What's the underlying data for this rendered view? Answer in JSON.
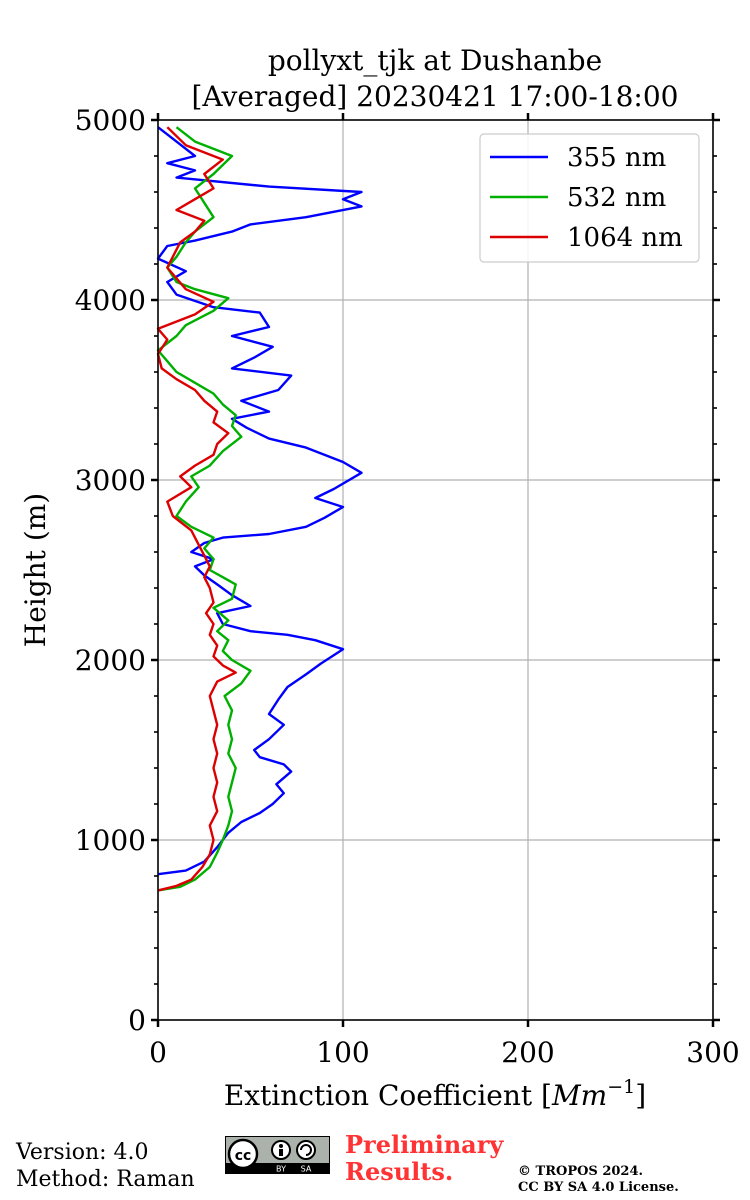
{
  "chart_data": {
    "type": "line",
    "title_line1": "pollyxt_tjk at Dushanbe",
    "title_line2": "[Averaged] 20230421 17:00-18:00",
    "xlabel_text": "Extinction Coefficient [",
    "xlabel_unit": "Mm",
    "xlabel_exp": "−1",
    "xlabel_close": "]",
    "ylabel": "Height (m)",
    "xlim": [
      0,
      300
    ],
    "ylim": [
      0,
      5000
    ],
    "xticks": [
      0,
      100,
      200,
      300
    ],
    "yticks": [
      0,
      1000,
      2000,
      3000,
      4000,
      5000
    ],
    "grid": true,
    "legend_position": "top-right",
    "series": [
      {
        "name": "355 nm",
        "color": "#0000ff",
        "points": [
          [
            0,
            810
          ],
          [
            15,
            830
          ],
          [
            25,
            880
          ],
          [
            32,
            960
          ],
          [
            38,
            1040
          ],
          [
            45,
            1100
          ],
          [
            55,
            1150
          ],
          [
            62,
            1200
          ],
          [
            68,
            1260
          ],
          [
            64,
            1310
          ],
          [
            72,
            1380
          ],
          [
            68,
            1420
          ],
          [
            55,
            1460
          ],
          [
            52,
            1500
          ],
          [
            60,
            1560
          ],
          [
            68,
            1640
          ],
          [
            60,
            1700
          ],
          [
            65,
            1780
          ],
          [
            70,
            1850
          ],
          [
            80,
            1920
          ],
          [
            88,
            1980
          ],
          [
            100,
            2060
          ],
          [
            85,
            2110
          ],
          [
            70,
            2140
          ],
          [
            50,
            2160
          ],
          [
            35,
            2200
          ],
          [
            32,
            2260
          ],
          [
            50,
            2300
          ],
          [
            40,
            2360
          ],
          [
            32,
            2420
          ],
          [
            25,
            2470
          ],
          [
            20,
            2520
          ],
          [
            30,
            2560
          ],
          [
            18,
            2600
          ],
          [
            25,
            2650
          ],
          [
            35,
            2680
          ],
          [
            60,
            2700
          ],
          [
            80,
            2740
          ],
          [
            90,
            2790
          ],
          [
            100,
            2850
          ],
          [
            85,
            2900
          ],
          [
            95,
            2950
          ],
          [
            110,
            3040
          ],
          [
            100,
            3100
          ],
          [
            80,
            3180
          ],
          [
            60,
            3230
          ],
          [
            48,
            3290
          ],
          [
            40,
            3340
          ],
          [
            60,
            3380
          ],
          [
            45,
            3440
          ],
          [
            65,
            3500
          ],
          [
            72,
            3580
          ],
          [
            40,
            3620
          ],
          [
            52,
            3680
          ],
          [
            62,
            3740
          ],
          [
            40,
            3800
          ],
          [
            60,
            3850
          ],
          [
            55,
            3930
          ],
          [
            30,
            3960
          ],
          [
            10,
            4030
          ],
          [
            5,
            4100
          ],
          [
            15,
            4160
          ],
          [
            0,
            4230
          ],
          [
            5,
            4300
          ],
          [
            20,
            4330
          ],
          [
            40,
            4380
          ],
          [
            50,
            4420
          ],
          [
            80,
            4460
          ],
          [
            110,
            4520
          ],
          [
            100,
            4560
          ],
          [
            110,
            4600
          ],
          [
            60,
            4630
          ],
          [
            10,
            4680
          ],
          [
            20,
            4720
          ],
          [
            5,
            4760
          ],
          [
            20,
            4800
          ],
          [
            10,
            4880
          ],
          [
            0,
            4960
          ]
        ]
      },
      {
        "name": "532 nm",
        "color": "#00b000",
        "points": [
          [
            0,
            720
          ],
          [
            12,
            740
          ],
          [
            20,
            780
          ],
          [
            28,
            850
          ],
          [
            32,
            930
          ],
          [
            35,
            1000
          ],
          [
            38,
            1080
          ],
          [
            40,
            1160
          ],
          [
            38,
            1240
          ],
          [
            40,
            1320
          ],
          [
            42,
            1400
          ],
          [
            38,
            1480
          ],
          [
            40,
            1560
          ],
          [
            38,
            1640
          ],
          [
            40,
            1720
          ],
          [
            36,
            1800
          ],
          [
            45,
            1870
          ],
          [
            50,
            1940
          ],
          [
            40,
            2000
          ],
          [
            35,
            2050
          ],
          [
            38,
            2110
          ],
          [
            32,
            2160
          ],
          [
            38,
            2220
          ],
          [
            30,
            2290
          ],
          [
            40,
            2340
          ],
          [
            42,
            2420
          ],
          [
            35,
            2460
          ],
          [
            28,
            2500
          ],
          [
            30,
            2560
          ],
          [
            25,
            2620
          ],
          [
            30,
            2680
          ],
          [
            18,
            2740
          ],
          [
            10,
            2800
          ],
          [
            15,
            2880
          ],
          [
            22,
            2960
          ],
          [
            18,
            3020
          ],
          [
            28,
            3080
          ],
          [
            35,
            3160
          ],
          [
            45,
            3240
          ],
          [
            40,
            3300
          ],
          [
            42,
            3360
          ],
          [
            35,
            3420
          ],
          [
            30,
            3480
          ],
          [
            20,
            3540
          ],
          [
            10,
            3600
          ],
          [
            5,
            3660
          ],
          [
            0,
            3720
          ],
          [
            10,
            3800
          ],
          [
            15,
            3860
          ],
          [
            30,
            3940
          ],
          [
            38,
            4010
          ],
          [
            20,
            4060
          ],
          [
            10,
            4100
          ],
          [
            5,
            4180
          ],
          [
            10,
            4240
          ],
          [
            15,
            4320
          ],
          [
            20,
            4380
          ],
          [
            30,
            4460
          ],
          [
            25,
            4540
          ],
          [
            20,
            4620
          ],
          [
            30,
            4700
          ],
          [
            40,
            4800
          ],
          [
            20,
            4880
          ],
          [
            10,
            4960
          ]
        ]
      },
      {
        "name": "1064 nm",
        "color": "#dd0000",
        "points": [
          [
            0,
            720
          ],
          [
            10,
            745
          ],
          [
            18,
            780
          ],
          [
            24,
            850
          ],
          [
            28,
            920
          ],
          [
            30,
            1000
          ],
          [
            28,
            1080
          ],
          [
            32,
            1160
          ],
          [
            30,
            1240
          ],
          [
            32,
            1320
          ],
          [
            30,
            1400
          ],
          [
            32,
            1480
          ],
          [
            30,
            1560
          ],
          [
            32,
            1640
          ],
          [
            30,
            1720
          ],
          [
            28,
            1800
          ],
          [
            32,
            1880
          ],
          [
            42,
            1930
          ],
          [
            35,
            1970
          ],
          [
            30,
            2020
          ],
          [
            32,
            2080
          ],
          [
            28,
            2140
          ],
          [
            30,
            2200
          ],
          [
            26,
            2260
          ],
          [
            30,
            2320
          ],
          [
            28,
            2400
          ],
          [
            25,
            2460
          ],
          [
            28,
            2520
          ],
          [
            25,
            2580
          ],
          [
            22,
            2640
          ],
          [
            18,
            2720
          ],
          [
            8,
            2800
          ],
          [
            5,
            2880
          ],
          [
            18,
            2960
          ],
          [
            12,
            3020
          ],
          [
            20,
            3080
          ],
          [
            30,
            3140
          ],
          [
            32,
            3200
          ],
          [
            38,
            3260
          ],
          [
            30,
            3320
          ],
          [
            32,
            3380
          ],
          [
            25,
            3440
          ],
          [
            20,
            3500
          ],
          [
            10,
            3560
          ],
          [
            2,
            3620
          ],
          [
            0,
            3700
          ],
          [
            5,
            3780
          ],
          [
            0,
            3840
          ],
          [
            20,
            3920
          ],
          [
            30,
            3990
          ],
          [
            15,
            4060
          ],
          [
            10,
            4120
          ],
          [
            5,
            4180
          ],
          [
            8,
            4240
          ],
          [
            12,
            4320
          ],
          [
            20,
            4380
          ],
          [
            25,
            4440
          ],
          [
            10,
            4500
          ],
          [
            20,
            4560
          ],
          [
            30,
            4620
          ],
          [
            25,
            4700
          ],
          [
            35,
            4780
          ],
          [
            15,
            4860
          ],
          [
            5,
            4960
          ]
        ]
      }
    ]
  },
  "footer": {
    "version": "Version: 4.0",
    "method": "Method: Raman",
    "prelim_line1": "Preliminary",
    "prelim_line2": "Results.",
    "copyright_line1": "© TROPOS 2024.",
    "copyright_line2": "CC BY SA 4.0 License.",
    "badge_by": "BY",
    "badge_sa": "SA",
    "badge_cc": "cc"
  }
}
